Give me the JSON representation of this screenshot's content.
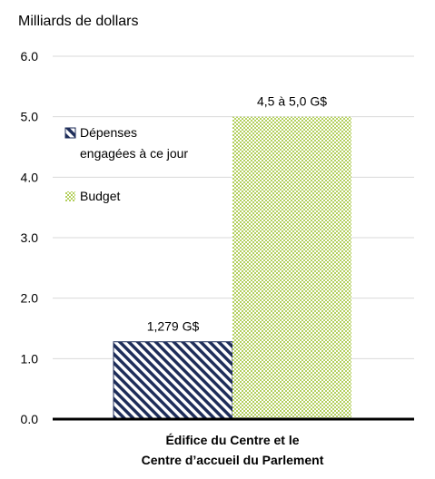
{
  "chart_data": {
    "type": "bar",
    "title": "Milliards de dollars",
    "categories": [
      "Édifice du Centre et le Centre d’accueil du Parlement"
    ],
    "category_lines": [
      "Édifice du Centre et le",
      "Centre d’accueil du Parlement"
    ],
    "ylim": [
      0,
      6
    ],
    "y_ticks": [
      "0.0",
      "1.0",
      "2.0",
      "3.0",
      "4.0",
      "5.0",
      "6.0"
    ],
    "grid": true,
    "legend_position": "left-middle",
    "series": [
      {
        "name": "Dépenses engagées à ce jour",
        "legend_lines": [
          "Dépenses",
          "engagées à ce jour"
        ],
        "values": [
          1.279
        ],
        "label": "1,279 G$",
        "color": "#1f2e5a",
        "pattern": "diagonal-stripes"
      },
      {
        "name": "Budget",
        "legend_lines": [
          "Budget"
        ],
        "values": [
          5.0
        ],
        "label": "4,5 à 5,0 G$",
        "color": "#b3cf5c",
        "pattern": "checker"
      }
    ]
  }
}
